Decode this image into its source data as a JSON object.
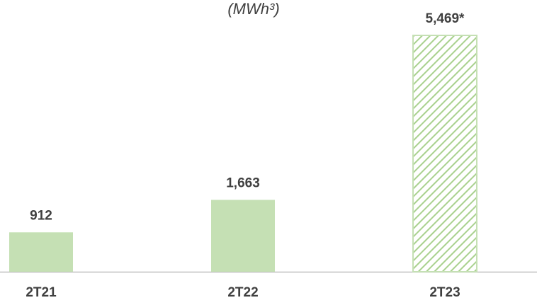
{
  "chart_data": {
    "type": "bar",
    "title": "(MWh³)",
    "categories": [
      "2T21",
      "2T22",
      "2T23"
    ],
    "values": [
      912,
      1663,
      5469
    ],
    "value_labels": [
      "912",
      "1,663",
      "5,469*"
    ],
    "color": "#c5e0b4",
    "hatch": [
      false,
      false,
      true
    ]
  }
}
